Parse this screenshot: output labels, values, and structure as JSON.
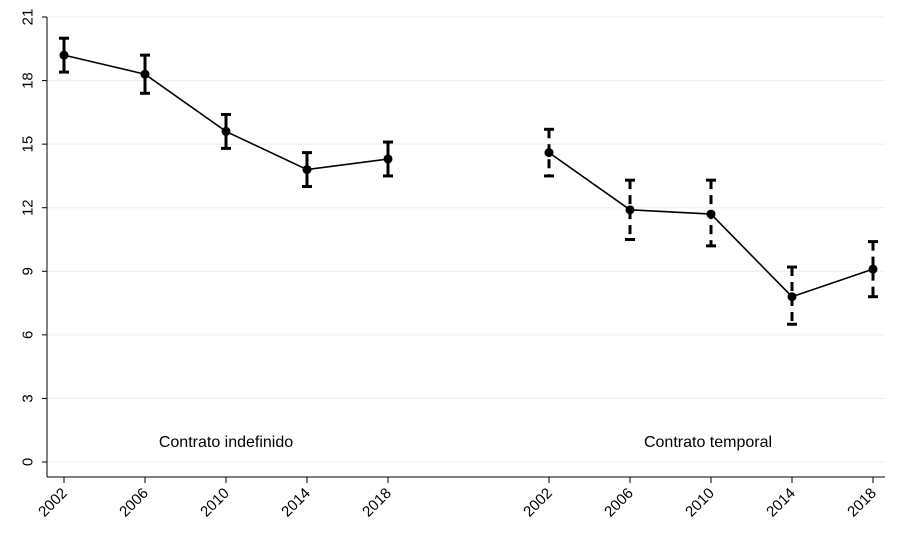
{
  "chart_data": {
    "type": "line",
    "title": "",
    "xlabel": "",
    "ylabel": "",
    "ylim": [
      0,
      21
    ],
    "yticks": [
      0,
      3,
      6,
      9,
      12,
      15,
      18,
      21
    ],
    "grid": true,
    "error_bars": true,
    "groups": [
      {
        "name": "Contrato indefinido",
        "label": "Contrato indefinido",
        "error_bar_style": "solid",
        "x": [
          "2002",
          "2006",
          "2010",
          "2014",
          "2018"
        ],
        "values": [
          19.2,
          18.3,
          15.6,
          13.8,
          14.3
        ],
        "lower": [
          18.4,
          17.4,
          14.8,
          13.0,
          13.5
        ],
        "upper": [
          20.0,
          19.2,
          16.4,
          14.6,
          15.1
        ]
      },
      {
        "name": "Contrato temporal",
        "label": "Contrato temporal",
        "error_bar_style": "dashed",
        "x": [
          "2002",
          "2006",
          "2010",
          "2014",
          "2018"
        ],
        "values": [
          14.6,
          11.9,
          11.7,
          7.8,
          9.1
        ],
        "lower": [
          13.5,
          10.5,
          10.2,
          6.5,
          7.8
        ],
        "upper": [
          15.7,
          13.3,
          13.3,
          9.2,
          10.4
        ]
      }
    ]
  }
}
